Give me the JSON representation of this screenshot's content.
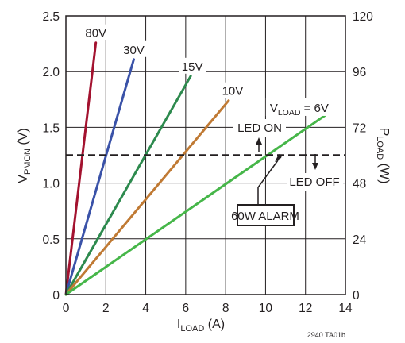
{
  "chart_data": {
    "type": "line",
    "x": {
      "label_main": "I",
      "label_sub": "LOAD",
      "label_unit": " (A)",
      "min": 0,
      "max": 14,
      "ticks": [
        0,
        2,
        4,
        6,
        8,
        10,
        12,
        14
      ]
    },
    "y_left": {
      "label_main": "V",
      "label_sub": "PMON",
      "label_unit": " (V)",
      "min": 0,
      "max": 2.5,
      "ticks": [
        "0",
        "0.5",
        "1.0",
        "1.5",
        "2.0",
        "2.5"
      ]
    },
    "y_right": {
      "label_main": "P",
      "label_sub": "LOAD",
      "label_unit": " (W)",
      "min": 0,
      "max": 120,
      "ticks": [
        "0",
        "24",
        "48",
        "72",
        "96",
        "120"
      ]
    },
    "grid": true,
    "series": [
      {
        "name": "80V",
        "color": "#a3122f",
        "points": [
          [
            0,
            0
          ],
          [
            1.5,
            2.26
          ]
        ]
      },
      {
        "name": "30V",
        "color": "#3a52a8",
        "points": [
          [
            0,
            0
          ],
          [
            3.4,
            2.11
          ]
        ]
      },
      {
        "name": "15V",
        "color": "#2d8a4e",
        "points": [
          [
            0,
            0
          ],
          [
            6.25,
            1.96
          ]
        ]
      },
      {
        "name": "10V",
        "color": "#c07a34",
        "points": [
          [
            0,
            0
          ],
          [
            8.15,
            1.74
          ]
        ]
      },
      {
        "name_main": "V",
        "name_sub": "LOAD",
        "name_suffix": " = 6V",
        "color": "#46b649",
        "points": [
          [
            0,
            0
          ],
          [
            13.0,
            1.61
          ]
        ]
      }
    ],
    "threshold": {
      "y": 1.25,
      "style": "dashed",
      "color": "#231f20"
    },
    "annotations": {
      "led_on": "LED ON",
      "led_off": "LED OFF",
      "alarm": "60W ALARM"
    },
    "figure_code": "2940 TA01b"
  }
}
